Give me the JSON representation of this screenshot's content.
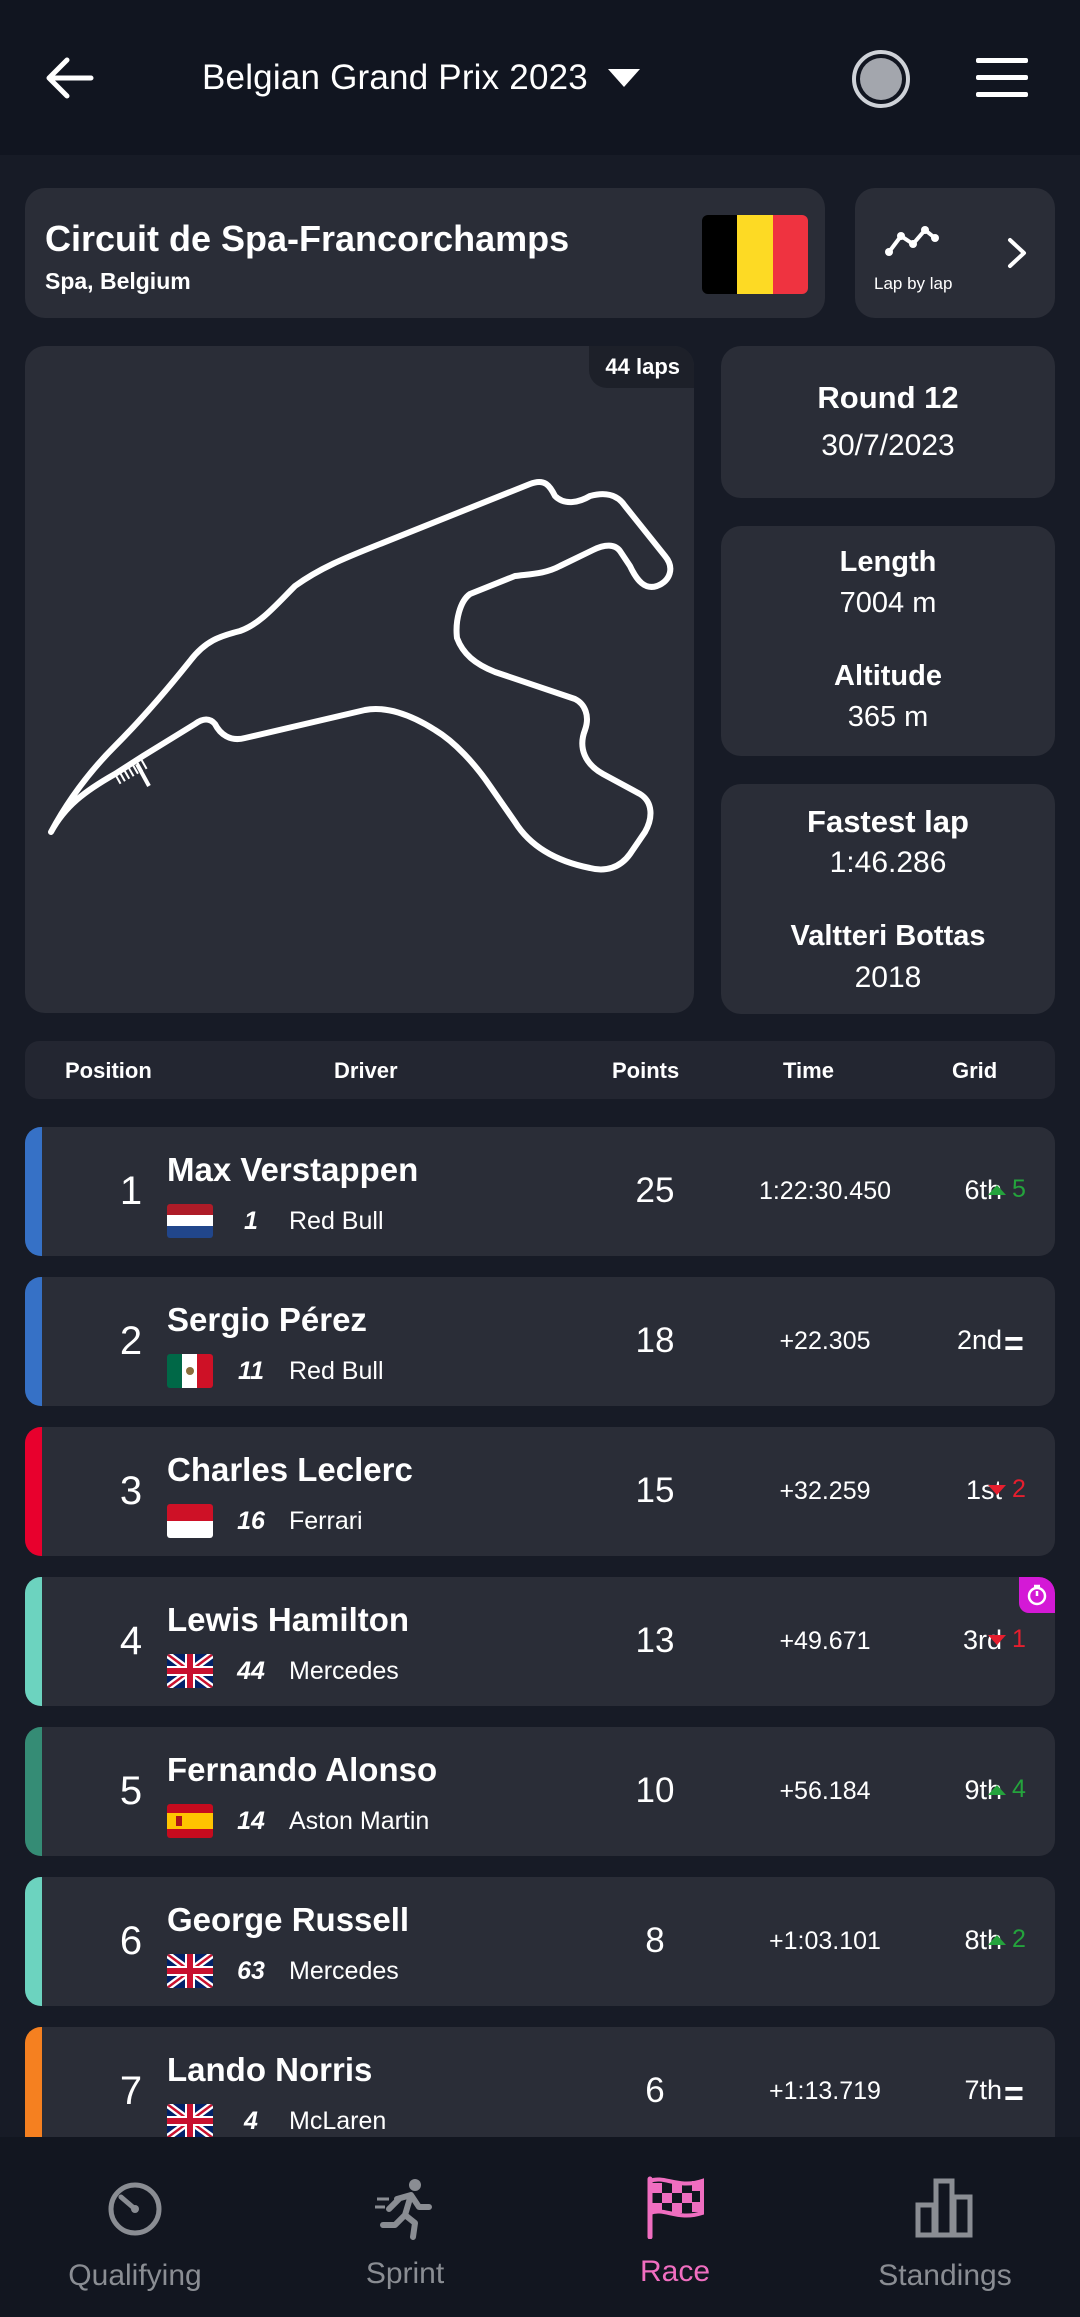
{
  "header": {
    "title": "Belgian Grand Prix 2023"
  },
  "circuit": {
    "name": "Circuit de Spa-Francorchamps",
    "location": "Spa, Belgium",
    "flag_colors": [
      "#000000",
      "#FDDA24",
      "#EF3340"
    ]
  },
  "lap_by_lap": {
    "label": "Lap by lap"
  },
  "track": {
    "laps": "44 laps"
  },
  "info": {
    "round": "Round 12",
    "date": "30/7/2023",
    "length_label": "Length",
    "length_value": "7004 m",
    "altitude_label": "Altitude",
    "altitude_value": "365 m",
    "fastest_label": "Fastest lap",
    "fastest_value": "1:46.286",
    "fastest_driver": "Valtteri Bottas",
    "fastest_year": "2018"
  },
  "table": {
    "headers": {
      "position": "Position",
      "driver": "Driver",
      "points": "Points",
      "time": "Time",
      "grid": "Grid"
    },
    "rows": [
      {
        "position": "1",
        "driver": "Max Verstappen",
        "number": "1",
        "team": "Red Bull",
        "points": "25",
        "time": "1:22:30.450",
        "grid": "6th",
        "change": "5",
        "direction": "up",
        "team_color": "#3671C6",
        "nation": "NED"
      },
      {
        "position": "2",
        "driver": "Sergio Pérez",
        "number": "11",
        "team": "Red Bull",
        "points": "18",
        "time": "+22.305",
        "grid": "2nd",
        "change": "=",
        "direction": "same",
        "team_color": "#3671C6",
        "nation": "MEX"
      },
      {
        "position": "3",
        "driver": "Charles Leclerc",
        "number": "16",
        "team": "Ferrari",
        "points": "15",
        "time": "+32.259",
        "grid": "1st",
        "change": "2",
        "direction": "down",
        "team_color": "#E8002D",
        "nation": "MON"
      },
      {
        "position": "4",
        "driver": "Lewis Hamilton",
        "number": "44",
        "team": "Mercedes",
        "points": "13",
        "time": "+49.671",
        "grid": "3rd",
        "change": "1",
        "direction": "down",
        "team_color": "#6CD3BF",
        "nation": "GBR",
        "fastest_lap": true
      },
      {
        "position": "5",
        "driver": "Fernando Alonso",
        "number": "14",
        "team": "Aston Martin",
        "points": "10",
        "time": "+56.184",
        "grid": "9th",
        "change": "4",
        "direction": "up",
        "team_color": "#358C75",
        "nation": "ESP"
      },
      {
        "position": "6",
        "driver": "George Russell",
        "number": "63",
        "team": "Mercedes",
        "points": "8",
        "time": "+1:03.101",
        "grid": "8th",
        "change": "2",
        "direction": "up",
        "team_color": "#6CD3BF",
        "nation": "GBR"
      },
      {
        "position": "7",
        "driver": "Lando Norris",
        "number": "4",
        "team": "McLaren",
        "points": "6",
        "time": "+1:13.719",
        "grid": "7th",
        "change": "=",
        "direction": "same",
        "team_color": "#F58020",
        "nation": "GBR"
      }
    ]
  },
  "nav": {
    "items": [
      {
        "label": "Qualifying",
        "icon": "stopwatch-icon",
        "active": false
      },
      {
        "label": "Sprint",
        "icon": "runner-icon",
        "active": false
      },
      {
        "label": "Race",
        "icon": "checkered-flag-icon",
        "active": true
      },
      {
        "label": "Standings",
        "icon": "bar-chart-icon",
        "active": false
      }
    ],
    "active_color": "#F06EC0",
    "inactive_color": "#8A8D93"
  },
  "colors": {
    "background": "#171B26",
    "card": "#2A2D37",
    "position_up": "#24A33C",
    "position_down": "#E61E2E",
    "fastest_lap_badge": "#D419D6"
  }
}
